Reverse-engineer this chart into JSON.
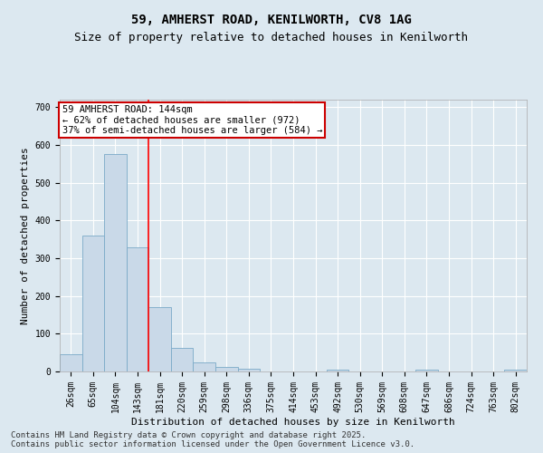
{
  "title_line1": "59, AMHERST ROAD, KENILWORTH, CV8 1AG",
  "title_line2": "Size of property relative to detached houses in Kenilworth",
  "xlabel": "Distribution of detached houses by size in Kenilworth",
  "ylabel": "Number of detached properties",
  "categories": [
    "26sqm",
    "65sqm",
    "104sqm",
    "143sqm",
    "181sqm",
    "220sqm",
    "259sqm",
    "298sqm",
    "336sqm",
    "375sqm",
    "414sqm",
    "453sqm",
    "492sqm",
    "530sqm",
    "569sqm",
    "608sqm",
    "647sqm",
    "686sqm",
    "724sqm",
    "763sqm",
    "802sqm"
  ],
  "values": [
    45,
    360,
    575,
    328,
    170,
    62,
    25,
    12,
    7,
    0,
    0,
    0,
    5,
    0,
    0,
    0,
    5,
    0,
    0,
    0,
    5
  ],
  "bar_color": "#c9d9e8",
  "bar_edge_color": "#7aaac8",
  "redline_x": 3.5,
  "annotation_line1": "59 AMHERST ROAD: 144sqm",
  "annotation_line2": "← 62% of detached houses are smaller (972)",
  "annotation_line3": "37% of semi-detached houses are larger (584) →",
  "annotation_box_color": "#cc0000",
  "ylim": [
    0,
    720
  ],
  "yticks": [
    0,
    100,
    200,
    300,
    400,
    500,
    600,
    700
  ],
  "background_color": "#dce8f0",
  "footer_line1": "Contains HM Land Registry data © Crown copyright and database right 2025.",
  "footer_line2": "Contains public sector information licensed under the Open Government Licence v3.0.",
  "title_fontsize": 10,
  "subtitle_fontsize": 9,
  "axis_label_fontsize": 8,
  "tick_fontsize": 7,
  "annotation_fontsize": 7.5,
  "footer_fontsize": 6.5
}
